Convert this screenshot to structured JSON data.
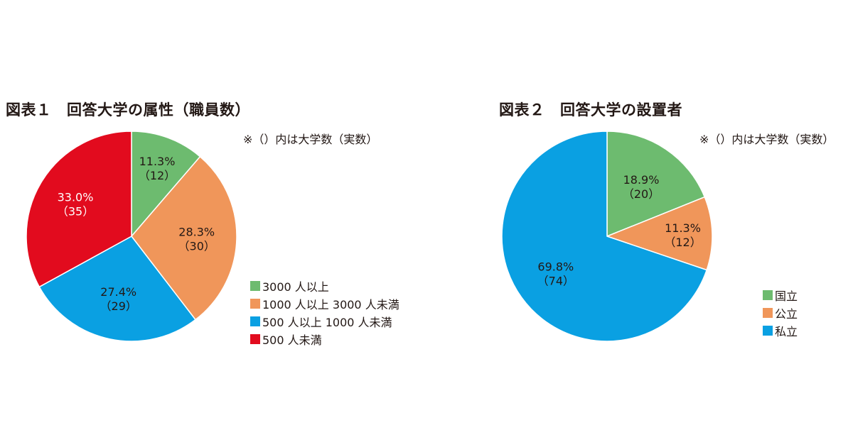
{
  "chart_data": [
    {
      "type": "pie",
      "title": "図表１　回答大学の属性（職員数）",
      "note": "※（）内は大学数（実数）",
      "legend_placement": "bottom-right",
      "series": [
        {
          "name": "3000 人以上",
          "value": 11.3,
          "count_label": "（12）",
          "pct_label": "11.3%",
          "color": "#6dbb6f"
        },
        {
          "name": "1000 人以上 3000 人未満",
          "value": 28.3,
          "count_label": "（30）",
          "pct_label": "28.3%",
          "color": "#f0965a"
        },
        {
          "name": "500 人以上 1000 人未満",
          "value": 27.4,
          "count_label": "（29）",
          "pct_label": "27.4%",
          "color": "#0aa0e2"
        },
        {
          "name": "500 人未満",
          "value": 33.0,
          "count_label": "（35）",
          "pct_label": "33.0%",
          "color": "#e20b1e"
        }
      ]
    },
    {
      "type": "pie",
      "title": "図表２　回答大学の設置者",
      "note": "※（）内は大学数（実数）",
      "legend_placement": "bottom-right",
      "series": [
        {
          "name": "国立",
          "value": 18.9,
          "count_label": "（20）",
          "pct_label": "18.9%",
          "color": "#6dbb6f"
        },
        {
          "name": "公立",
          "value": 11.3,
          "count_label": "（12）",
          "pct_label": "11.3%",
          "color": "#f0965a"
        },
        {
          "name": "私立",
          "value": 69.8,
          "count_label": "（74）",
          "pct_label": "69.8%",
          "color": "#0aa0e2"
        }
      ]
    }
  ]
}
